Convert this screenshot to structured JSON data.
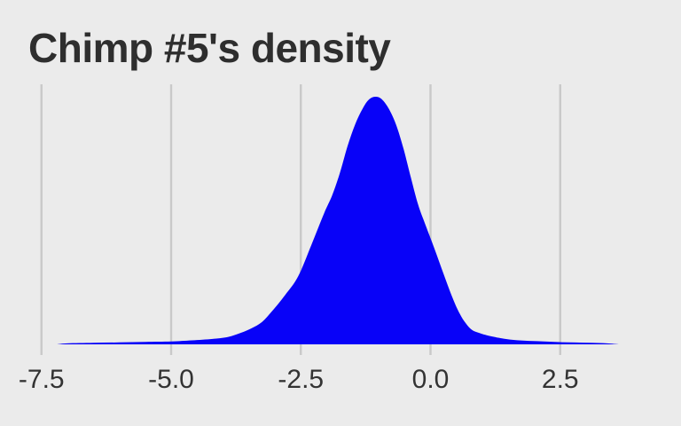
{
  "title": "Chimp #5's density",
  "colors": {
    "background": "#EBEBEB",
    "gridline": "#C9C9C9",
    "density_fill": "#0802F8",
    "title_text": "#2E2E2E",
    "tick_text": "#333333"
  },
  "chart_data": {
    "type": "area",
    "subtype": "kernel-density",
    "title": "Chimp #5's density",
    "xlabel": "",
    "ylabel": "",
    "legend": "none",
    "grid": "vertical-only",
    "x_ticks": [
      {
        "value": -7.5,
        "label": "-7.5"
      },
      {
        "value": -5.0,
        "label": "-5.0"
      },
      {
        "value": -2.5,
        "label": "-2.5"
      },
      {
        "value": 0.0,
        "label": "0.0"
      },
      {
        "value": 2.5,
        "label": "2.5"
      }
    ],
    "x_range": [
      -8.3,
      4.83
    ],
    "y_unit": "relative density (peak normalized to 1)",
    "peak": {
      "x": -1.06,
      "relative_density": 1.0
    },
    "series": [
      {
        "name": "Chimp #5",
        "points": [
          [
            -7.2,
            0.0
          ],
          [
            -7.0,
            0.004
          ],
          [
            -6.5,
            0.006
          ],
          [
            -6.0,
            0.008
          ],
          [
            -5.5,
            0.01
          ],
          [
            -5.0,
            0.012
          ],
          [
            -4.6,
            0.016
          ],
          [
            -4.2,
            0.022
          ],
          [
            -3.9,
            0.03
          ],
          [
            -3.65,
            0.047
          ],
          [
            -3.45,
            0.065
          ],
          [
            -3.25,
            0.09
          ],
          [
            -3.05,
            0.135
          ],
          [
            -2.8,
            0.2
          ],
          [
            -2.55,
            0.275
          ],
          [
            -2.3,
            0.4
          ],
          [
            -2.05,
            0.53
          ],
          [
            -1.9,
            0.6
          ],
          [
            -1.75,
            0.69
          ],
          [
            -1.6,
            0.8
          ],
          [
            -1.45,
            0.89
          ],
          [
            -1.3,
            0.955
          ],
          [
            -1.18,
            0.99
          ],
          [
            -1.06,
            1.0
          ],
          [
            -0.94,
            0.99
          ],
          [
            -0.8,
            0.95
          ],
          [
            -0.66,
            0.885
          ],
          [
            -0.52,
            0.79
          ],
          [
            -0.38,
            0.675
          ],
          [
            -0.24,
            0.565
          ],
          [
            -0.12,
            0.495
          ],
          [
            0.07,
            0.39
          ],
          [
            0.26,
            0.28
          ],
          [
            0.43,
            0.185
          ],
          [
            0.56,
            0.125
          ],
          [
            0.68,
            0.085
          ],
          [
            0.8,
            0.058
          ],
          [
            0.95,
            0.045
          ],
          [
            1.1,
            0.036
          ],
          [
            1.35,
            0.025
          ],
          [
            1.6,
            0.018
          ],
          [
            1.9,
            0.014
          ],
          [
            2.2,
            0.012
          ],
          [
            2.5,
            0.009
          ],
          [
            2.8,
            0.0075
          ],
          [
            3.1,
            0.006
          ],
          [
            3.4,
            0.004
          ],
          [
            3.63,
            0.0
          ]
        ]
      }
    ]
  }
}
